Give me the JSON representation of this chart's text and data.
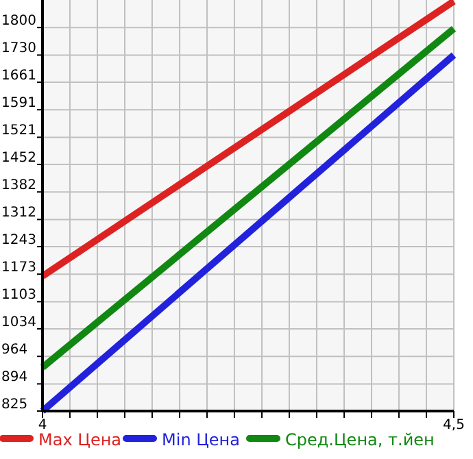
{
  "chart_data": {
    "type": "line",
    "x": [
      4,
      4.5
    ],
    "series": [
      {
        "name": "Max Цена",
        "color": "#dd2222",
        "values": [
          1168,
          1867
        ]
      },
      {
        "name": "Min Цена",
        "color": "#2222dd",
        "values": [
          825,
          1730
        ]
      },
      {
        "name": "Сред.Цена, т.йен",
        "color": "#118811",
        "values": [
          936,
          1797
        ]
      }
    ],
    "xlim": [
      4,
      4.5
    ],
    "xticks": [
      {
        "value": 4,
        "label": "4"
      },
      {
        "value": 4.0333,
        "label": null
      },
      {
        "value": 4.0667,
        "label": null
      },
      {
        "value": 4.1,
        "label": null
      },
      {
        "value": 4.1333,
        "label": null
      },
      {
        "value": 4.1667,
        "label": null
      },
      {
        "value": 4.2,
        "label": null
      },
      {
        "value": 4.2333,
        "label": null
      },
      {
        "value": 4.2667,
        "label": null
      },
      {
        "value": 4.3,
        "label": null
      },
      {
        "value": 4.3333,
        "label": null
      },
      {
        "value": 4.3667,
        "label": null
      },
      {
        "value": 4.4,
        "label": null
      },
      {
        "value": 4.4333,
        "label": null
      },
      {
        "value": 4.4667,
        "label": null
      },
      {
        "value": 4.5,
        "label": "4,5"
      }
    ],
    "ylim": [
      825,
      1870
    ],
    "yticks": [
      825,
      894,
      964,
      1034,
      1103,
      1173,
      1243,
      1312,
      1382,
      1452,
      1521,
      1591,
      1661,
      1730,
      1800
    ],
    "grid": true,
    "legend": "bottom",
    "marker": "none",
    "line_style": "solid"
  }
}
